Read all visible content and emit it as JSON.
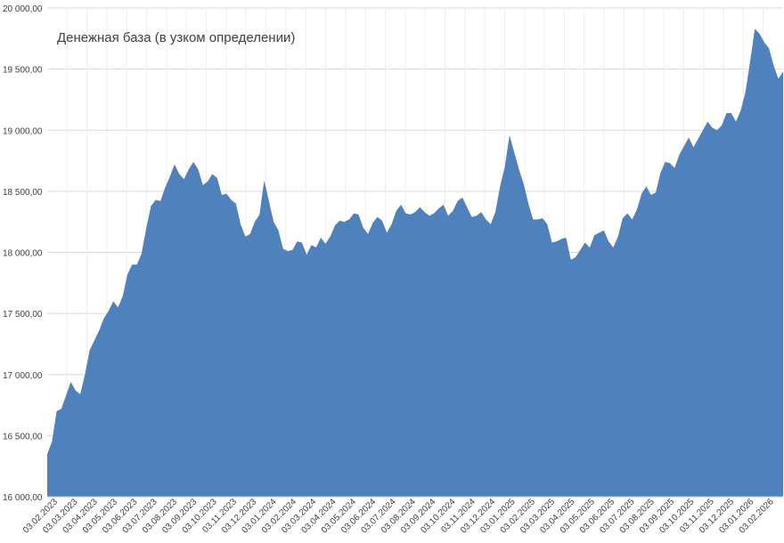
{
  "chart_data": {
    "type": "area",
    "title": "Денежная база (в узком определении)",
    "xlabel": "",
    "ylabel": "",
    "ylim": [
      16000,
      20000
    ],
    "grid": true,
    "color": "#4f81bd",
    "gridColor": "#d9d9d9",
    "yticks": [
      {
        "value": 16000,
        "label": "16 000,00"
      },
      {
        "value": 16500,
        "label": "16 500,00"
      },
      {
        "value": 17000,
        "label": "17 000,00"
      },
      {
        "value": 17500,
        "label": "17 500,00"
      },
      {
        "value": 18000,
        "label": "18 000,00"
      },
      {
        "value": 18500,
        "label": "18 500,00"
      },
      {
        "value": 19000,
        "label": "19 000,00"
      },
      {
        "value": 19500,
        "label": "19 500,00"
      },
      {
        "value": 20000,
        "label": "20 000,00"
      }
    ],
    "xticks": [
      "03.02.2023",
      "03.03.2023",
      "03.04.2023",
      "03.05.2023",
      "03.06.2023",
      "03.07.2023",
      "03.08.2023",
      "03.09.2023",
      "03.10.2023",
      "03.11.2023",
      "03.12.2023",
      "03.01.2024",
      "03.02.2024",
      "03.03.2024",
      "03.04.2024",
      "03.05.2024",
      "03.06.2024",
      "03.07.2024",
      "03.08.2024",
      "03.09.2024",
      "03.10.2024",
      "03.11.2024",
      "03.12.2024",
      "03.01.2025",
      "03.02.2025",
      "03.03.2025",
      "03.04.2025",
      "03.05.2025",
      "03.06.2025",
      "03.07.2025",
      "03.08.2025",
      "03.09.2025",
      "03.10.2025",
      "03.11.2025",
      "03.12.2025",
      "03.01.2026",
      "03.02.2026"
    ],
    "series": [
      {
        "values": [
          16350,
          16450,
          16700,
          16720,
          16830,
          16940,
          16870,
          16840,
          17000,
          17200,
          17280,
          17360,
          17460,
          17520,
          17600,
          17550,
          17640,
          17820,
          17900,
          17900,
          17990,
          18200,
          18380,
          18430,
          18420,
          18530,
          18620,
          18720,
          18640,
          18600,
          18680,
          18740,
          18680,
          18550,
          18580,
          18640,
          18610,
          18470,
          18480,
          18430,
          18400,
          18230,
          18130,
          18150,
          18250,
          18310,
          18590,
          18420,
          18250,
          18180,
          18030,
          18010,
          18020,
          18090,
          18080,
          17980,
          18060,
          18040,
          18120,
          18070,
          18130,
          18220,
          18260,
          18250,
          18270,
          18320,
          18310,
          18200,
          18150,
          18240,
          18290,
          18260,
          18160,
          18230,
          18340,
          18390,
          18320,
          18310,
          18330,
          18370,
          18330,
          18300,
          18320,
          18360,
          18390,
          18300,
          18340,
          18420,
          18450,
          18370,
          18290,
          18300,
          18330,
          18270,
          18230,
          18330,
          18540,
          18700,
          18960,
          18820,
          18680,
          18560,
          18400,
          18270,
          18270,
          18280,
          18230,
          18080,
          18090,
          18110,
          18120,
          17940,
          17960,
          18020,
          18080,
          18040,
          18140,
          18160,
          18180,
          18090,
          18040,
          18130,
          18280,
          18320,
          18270,
          18350,
          18480,
          18540,
          18470,
          18490,
          18650,
          18740,
          18730,
          18690,
          18800,
          18870,
          18940,
          18860,
          18930,
          19000,
          19070,
          19020,
          19000,
          19040,
          19140,
          19140,
          19070,
          19160,
          19310,
          19560,
          19830,
          19790,
          19720,
          19670,
          19530,
          19420,
          19480
        ]
      }
    ]
  }
}
